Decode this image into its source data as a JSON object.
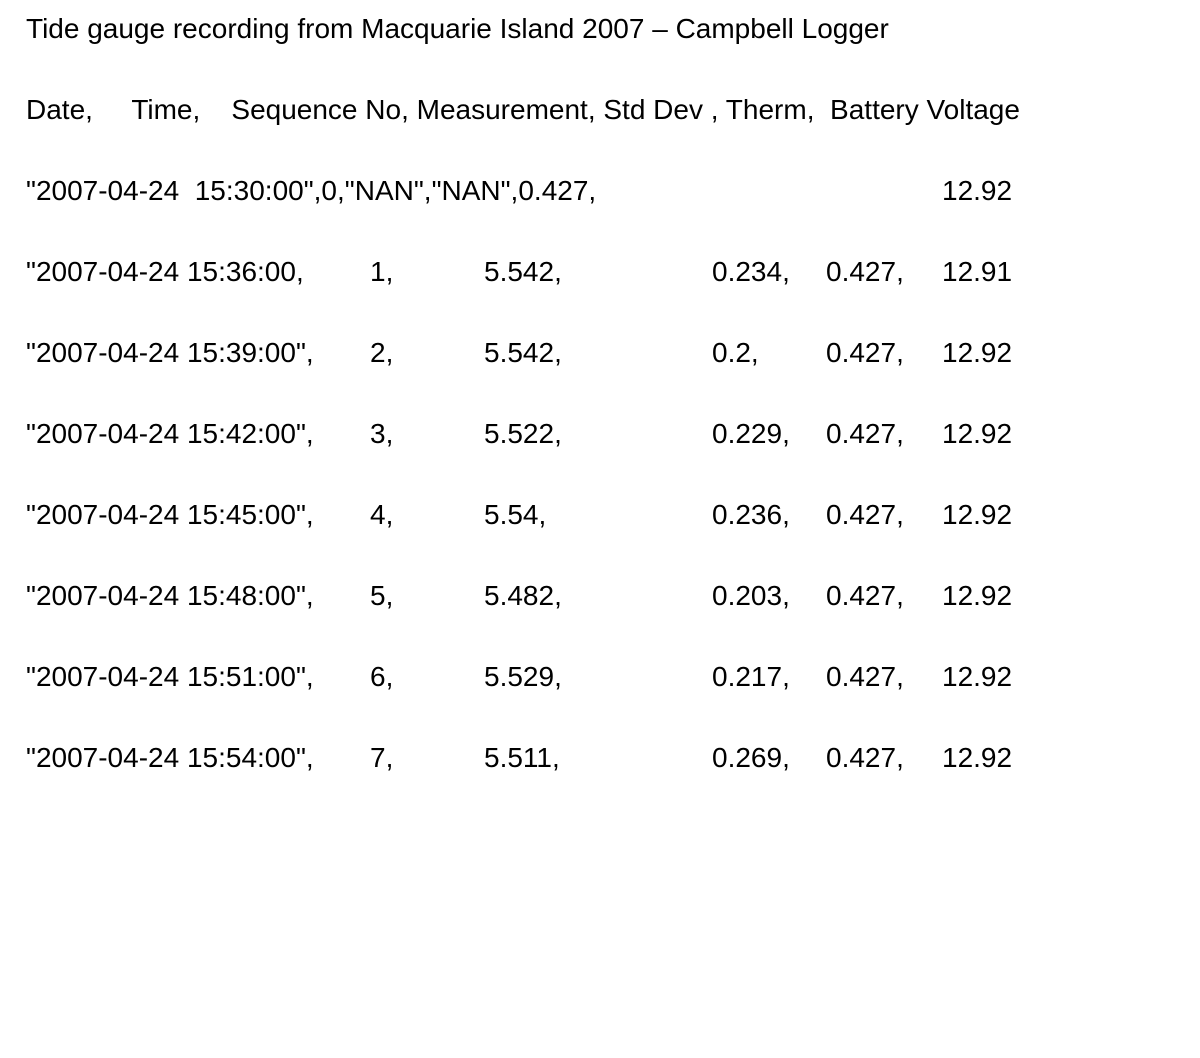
{
  "title": "Tide gauge recording from Macquarie Island 2007 – Campbell Logger",
  "header": "Date,     Time,    Sequence No, Measurement, Std Dev , Therm,  Battery Voltage",
  "rows": [
    {
      "timestamp": "\"2007-04-24  15:30:00\",0,\"NAN\",\"NAN\",0.427,",
      "seq": "",
      "measurement": "",
      "std_dev": "",
      "therm": "",
      "battery": "12.92"
    },
    {
      "timestamp": "\"2007-04-24 15:36:00,",
      "seq": "1,",
      "measurement": "5.542,",
      "std_dev": "0.234,",
      "therm": "0.427,",
      "battery": "12.91"
    },
    {
      "timestamp": "\"2007-04-24 15:39:00\",",
      "seq": "2,",
      "measurement": "5.542,",
      "std_dev": "0.2,",
      "therm": "0.427,",
      "battery": "12.92"
    },
    {
      "timestamp": "\"2007-04-24 15:42:00\",",
      "seq": "3,",
      "measurement": "5.522,",
      "std_dev": "0.229,",
      "therm": "0.427,",
      "battery": "12.92"
    },
    {
      "timestamp": "\"2007-04-24 15:45:00\",",
      "seq": "4,",
      "measurement": "5.54,",
      "std_dev": "0.236,",
      "therm": "0.427,",
      "battery": "12.92"
    },
    {
      "timestamp": "\"2007-04-24 15:48:00\",",
      "seq": "5,",
      "measurement": "5.482,",
      "std_dev": "0.203,",
      "therm": "0.427,",
      "battery": "12.92"
    },
    {
      "timestamp": "\"2007-04-24 15:51:00\",",
      "seq": "6,",
      "measurement": "5.529,",
      "std_dev": "0.217,",
      "therm": "0.427,",
      "battery": "12.92"
    },
    {
      "timestamp": "\"2007-04-24 15:54:00\",",
      "seq": "7,",
      "measurement": "5.511,",
      "std_dev": "0.269,",
      "therm": "0.427,",
      "battery": "12.92"
    }
  ]
}
